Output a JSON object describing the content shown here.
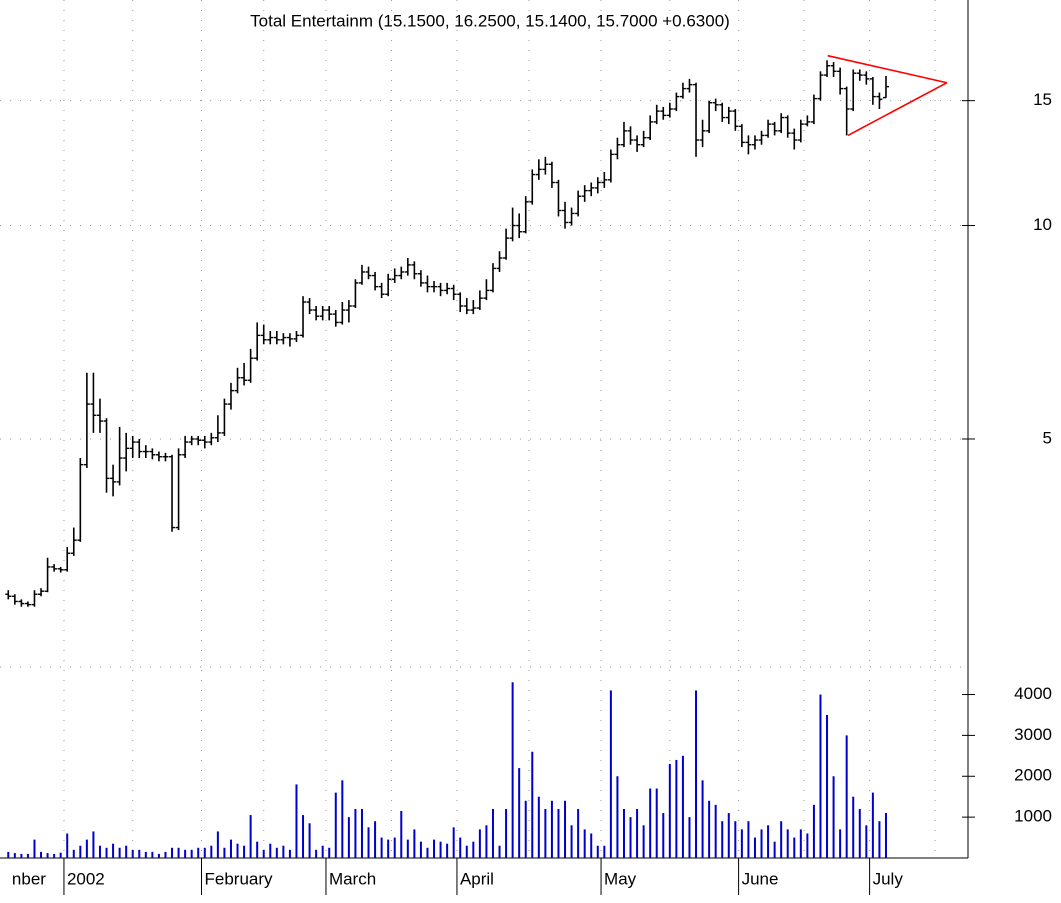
{
  "chart_data": {
    "type": "ohlc",
    "title": "Total Entertainm (15.1500, 16.2500, 15.1400, 15.7000 +0.6300)",
    "categories": [
      "nber",
      null,
      null,
      null,
      null,
      null,
      null,
      null,
      null,
      "2002",
      null,
      null,
      null,
      null,
      null,
      null,
      null,
      null,
      null,
      null,
      null,
      null,
      null,
      null,
      null,
      null,
      null,
      null,
      null,
      null,
      "February",
      null,
      null,
      null,
      null,
      null,
      null,
      null,
      null,
      null,
      null,
      null,
      null,
      null,
      null,
      null,
      null,
      null,
      null,
      "March",
      null,
      null,
      null,
      null,
      null,
      null,
      null,
      null,
      null,
      null,
      null,
      null,
      null,
      null,
      null,
      null,
      null,
      null,
      null,
      "April",
      null,
      null,
      null,
      null,
      null,
      null,
      null,
      null,
      null,
      null,
      null,
      null,
      null,
      null,
      null,
      null,
      null,
      null,
      null,
      null,
      null,
      "May",
      null,
      null,
      null,
      null,
      null,
      null,
      null,
      null,
      null,
      null,
      null,
      null,
      null,
      null,
      null,
      null,
      null,
      null,
      null,
      null,
      "June",
      null,
      null,
      null,
      null,
      null,
      null,
      null,
      null,
      null,
      null,
      null,
      null,
      null,
      null,
      null,
      null,
      null,
      null,
      null,
      "July",
      null,
      null
    ],
    "open": [
      3.02,
      3.0,
      2.95,
      2.93,
      2.92,
      3.02,
      3.05,
      3.3,
      3.28,
      3.27,
      3.45,
      3.6,
      4.6,
      5.6,
      5.4,
      5.3,
      4.4,
      4.35,
      4.7,
      4.85,
      4.95,
      4.8,
      4.8,
      4.75,
      4.72,
      4.72,
      3.75,
      4.75,
      4.95,
      5.0,
      4.98,
      4.95,
      5.02,
      5.1,
      5.6,
      5.85,
      6.1,
      6.05,
      6.5,
      7.0,
      6.9,
      6.95,
      6.9,
      6.95,
      6.92,
      7.0,
      7.8,
      7.6,
      7.45,
      7.6,
      7.5,
      7.3,
      7.6,
      7.7,
      8.3,
      8.6,
      8.5,
      8.2,
      8.0,
      8.4,
      8.5,
      8.6,
      8.8,
      8.55,
      8.3,
      8.2,
      8.2,
      8.1,
      8.15,
      8.0,
      7.7,
      7.6,
      7.65,
      7.9,
      8.1,
      8.7,
      9.0,
      9.6,
      10.0,
      9.8,
      10.8,
      11.8,
      12.0,
      12.2,
      11.5,
      10.5,
      10.1,
      10.4,
      11.0,
      11.2,
      11.3,
      11.5,
      11.6,
      12.6,
      13.0,
      13.6,
      13.2,
      13.0,
      13.3,
      14.0,
      14.5,
      14.3,
      14.6,
      15.2,
      15.6,
      15.8,
      13.2,
      13.6,
      14.9,
      14.8,
      14.2,
      14.5,
      13.8,
      13.1,
      13.0,
      13.2,
      13.4,
      13.9,
      13.6,
      14.2,
      13.5,
      13.2,
      13.9,
      14.0,
      15.1,
      16.3,
      16.8,
      16.5,
      15.6,
      14.6,
      16.4,
      16.3,
      16.1,
      15.2,
      15.15
    ],
    "high": [
      3.06,
      3.02,
      2.97,
      2.95,
      3.06,
      3.08,
      3.4,
      3.33,
      3.3,
      3.52,
      3.75,
      4.7,
      6.2,
      6.2,
      5.7,
      5.35,
      4.6,
      5.2,
      5.1,
      5.05,
      5.0,
      4.9,
      4.85,
      4.8,
      4.78,
      4.75,
      4.85,
      5.05,
      5.05,
      5.05,
      5.05,
      5.1,
      5.4,
      5.7,
      6.0,
      6.3,
      6.4,
      6.7,
      7.3,
      7.25,
      7.1,
      7.1,
      7.05,
      7.05,
      7.1,
      7.95,
      7.9,
      7.7,
      7.7,
      7.7,
      7.6,
      7.8,
      7.85,
      8.4,
      8.8,
      8.75,
      8.6,
      8.3,
      8.55,
      8.7,
      8.75,
      9.0,
      8.9,
      8.65,
      8.5,
      8.35,
      8.3,
      8.3,
      8.25,
      8.05,
      7.9,
      7.85,
      8.1,
      8.4,
      8.85,
      9.2,
      9.9,
      10.6,
      10.4,
      11.0,
      12.0,
      12.4,
      12.5,
      12.3,
      11.6,
      10.8,
      10.6,
      11.2,
      11.4,
      11.5,
      11.7,
      11.9,
      12.8,
      13.3,
      14.0,
      13.8,
      13.4,
      13.6,
      14.3,
      14.8,
      14.7,
      14.9,
      15.4,
      15.9,
      16.1,
      15.9,
      14.1,
      15.0,
      15.1,
      14.9,
      14.7,
      14.6,
      13.9,
      13.4,
      13.4,
      13.6,
      14.1,
      14.0,
      14.4,
      14.3,
      13.7,
      14.1,
      14.3,
      15.3,
      16.5,
      17.1,
      17.0,
      16.7,
      15.7,
      16.6,
      16.6,
      16.5,
      16.2,
      15.4,
      16.25
    ],
    "low": [
      2.97,
      2.92,
      2.9,
      2.9,
      2.9,
      3.0,
      3.04,
      3.25,
      3.24,
      3.25,
      3.42,
      3.58,
      4.55,
      5.1,
      5.1,
      4.2,
      4.15,
      4.3,
      4.5,
      4.7,
      4.7,
      4.7,
      4.68,
      4.65,
      4.65,
      3.7,
      3.72,
      4.7,
      4.9,
      4.9,
      4.85,
      4.9,
      4.95,
      5.05,
      5.5,
      5.8,
      5.95,
      6.0,
      6.45,
      6.8,
      6.8,
      6.8,
      6.8,
      6.75,
      6.85,
      6.95,
      7.5,
      7.35,
      7.35,
      7.35,
      7.2,
      7.25,
      7.3,
      7.65,
      8.25,
      8.4,
      8.1,
      7.9,
      7.95,
      8.3,
      8.4,
      8.5,
      8.4,
      8.2,
      8.05,
      8.05,
      7.95,
      8.0,
      7.85,
      7.55,
      7.5,
      7.5,
      7.6,
      7.85,
      8.05,
      8.6,
      8.95,
      9.5,
      9.6,
      9.75,
      10.7,
      11.6,
      11.8,
      11.3,
      10.3,
      9.9,
      10.0,
      10.3,
      10.8,
      11.0,
      11.1,
      11.3,
      11.5,
      12.4,
      12.9,
      13.0,
      12.7,
      12.9,
      13.2,
      13.9,
      14.1,
      14.2,
      14.5,
      15.1,
      15.4,
      12.5,
      12.9,
      13.5,
      14.5,
      14.0,
      13.9,
      13.6,
      12.9,
      12.6,
      12.8,
      13.0,
      13.3,
      13.4,
      13.5,
      13.3,
      12.8,
      13.1,
      13.8,
      13.9,
      15.0,
      16.2,
      16.2,
      15.3,
      13.4,
      14.5,
      16.0,
      15.8,
      14.8,
      14.6,
      15.14
    ],
    "close": [
      3.0,
      2.95,
      2.93,
      2.92,
      3.02,
      3.05,
      3.3,
      3.28,
      3.27,
      3.45,
      3.6,
      4.6,
      5.6,
      5.4,
      5.3,
      4.4,
      4.35,
      4.7,
      4.85,
      4.95,
      4.8,
      4.8,
      4.75,
      4.72,
      4.72,
      3.75,
      4.75,
      4.95,
      5.0,
      4.98,
      4.95,
      5.02,
      5.1,
      5.6,
      5.85,
      6.1,
      6.05,
      6.5,
      7.0,
      6.9,
      6.95,
      6.9,
      6.95,
      6.92,
      7.0,
      7.8,
      7.6,
      7.45,
      7.6,
      7.5,
      7.3,
      7.6,
      7.7,
      8.3,
      8.6,
      8.5,
      8.2,
      8.0,
      8.4,
      8.5,
      8.6,
      8.8,
      8.55,
      8.3,
      8.2,
      8.2,
      8.1,
      8.15,
      8.0,
      7.7,
      7.6,
      7.65,
      7.9,
      8.1,
      8.7,
      9.0,
      9.6,
      10.0,
      9.8,
      10.8,
      11.8,
      12.0,
      12.2,
      11.5,
      10.5,
      10.1,
      10.4,
      11.0,
      11.2,
      11.3,
      11.5,
      11.6,
      12.6,
      13.0,
      13.6,
      13.2,
      13.0,
      13.3,
      14.0,
      14.5,
      14.3,
      14.6,
      15.2,
      15.6,
      15.8,
      13.2,
      13.6,
      14.9,
      14.8,
      14.2,
      14.5,
      13.8,
      13.1,
      13.0,
      13.2,
      13.4,
      13.9,
      13.6,
      14.2,
      13.5,
      13.2,
      13.9,
      14.0,
      15.1,
      16.3,
      16.8,
      16.5,
      15.6,
      14.6,
      16.4,
      16.3,
      16.1,
      15.2,
      15.07,
      15.7
    ],
    "color": "#000000",
    "log": true,
    "ylim": [
      2.4,
      20.8
    ],
    "yticks": [
      5,
      10,
      15
    ],
    "grid": true,
    "volume": {
      "color": "#0000cc",
      "ylim": [
        0,
        4600
      ],
      "yticks": [
        1000,
        2000,
        3000,
        4000
      ],
      "values": [
        150,
        120,
        100,
        100,
        450,
        150,
        120,
        100,
        130,
        600,
        200,
        300,
        450,
        650,
        300,
        250,
        350,
        250,
        300,
        200,
        200,
        150,
        150,
        100,
        150,
        250,
        250,
        200,
        200,
        250,
        250,
        300,
        650,
        250,
        450,
        350,
        300,
        1050,
        400,
        200,
        350,
        250,
        300,
        200,
        1800,
        1050,
        850,
        200,
        300,
        250,
        1600,
        1900,
        1000,
        1200,
        1200,
        750,
        900,
        500,
        450,
        500,
        1150,
        450,
        700,
        400,
        250,
        450,
        400,
        350,
        750,
        500,
        300,
        400,
        700,
        800,
        1200,
        300,
        1200,
        4300,
        2200,
        1400,
        2600,
        1500,
        1200,
        1400,
        1200,
        1400,
        800,
        1200,
        700,
        600,
        300,
        300,
        4100,
        2000,
        1200,
        1000,
        1200,
        800,
        1700,
        1700,
        1100,
        2300,
        2400,
        2500,
        1000,
        4100,
        1900,
        1400,
        1300,
        900,
        1100,
        900,
        700,
        900,
        500,
        700,
        800,
        400,
        900,
        700,
        500,
        700,
        600,
        1300,
        4000,
        3500,
        2000,
        700,
        3000,
        1500,
        1200,
        800,
        1600,
        900,
        1100
      ]
    },
    "trendlines": [
      {
        "color": "#ff0000",
        "x": [
          125.1,
          143.3
        ],
        "y": [
          17.36,
          15.9
        ]
      },
      {
        "color": "#ff0000",
        "x": [
          128.2,
          143.3
        ],
        "y": [
          13.4,
          15.9
        ]
      }
    ]
  }
}
